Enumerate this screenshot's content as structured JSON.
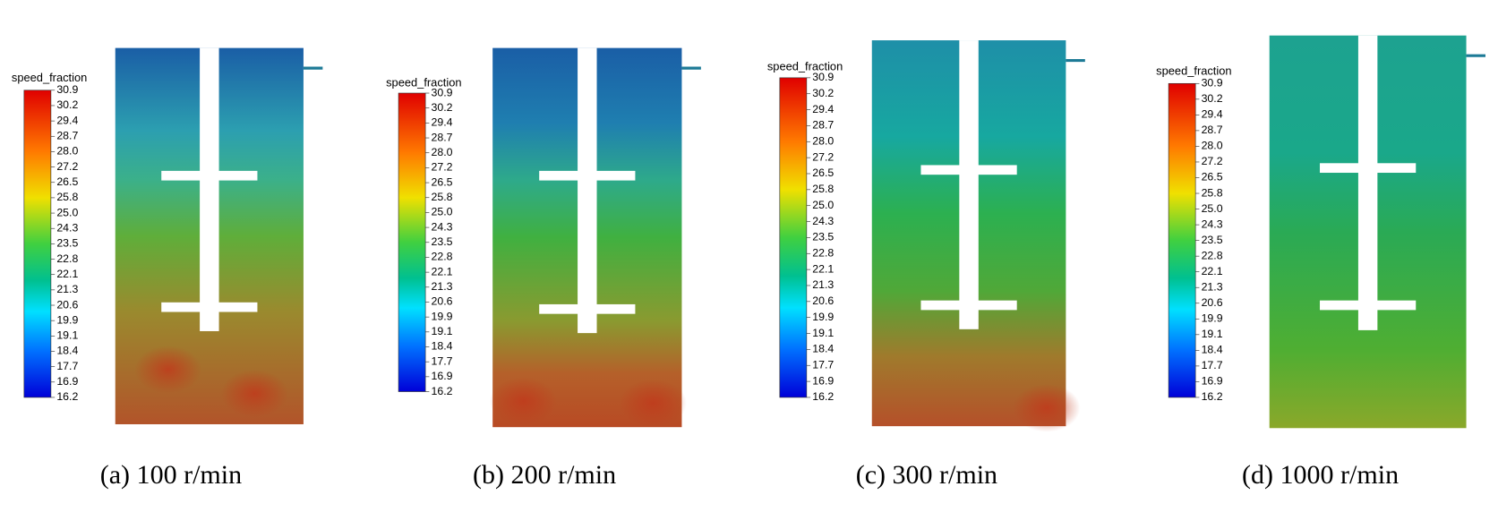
{
  "panels": [
    {
      "legend_title": "speed_fraction",
      "ticks": [
        "30.9",
        "30.2",
        "29.4",
        "28.7",
        "28.0",
        "27.2",
        "26.5",
        "25.8",
        "25.0",
        "24.3",
        "23.5",
        "22.8",
        "22.1",
        "21.3",
        "20.6",
        "19.9",
        "19.1",
        "18.4",
        "17.7",
        "16.9",
        "16.2"
      ],
      "caption": "(a) 100 r/min"
    },
    {
      "legend_title": "speed_fraction",
      "ticks": [
        "30.9",
        "30.2",
        "29.4",
        "28.7",
        "28.0",
        "27.2",
        "26.5",
        "25.8",
        "25.0",
        "24.3",
        "23.5",
        "22.8",
        "22.1",
        "21.3",
        "20.6",
        "19.9",
        "19.1",
        "18.4",
        "17.7",
        "16.9",
        "16.2"
      ],
      "caption": "(b) 200 r/min"
    },
    {
      "legend_title": "speed_fraction",
      "ticks": [
        "30.9",
        "30.2",
        "29.4",
        "28.7",
        "28.0",
        "27.2",
        "26.5",
        "25.8",
        "25.0",
        "24.3",
        "23.5",
        "22.8",
        "22.1",
        "21.3",
        "20.6",
        "19.9",
        "19.1",
        "18.4",
        "17.7",
        "16.9",
        "16.2"
      ],
      "caption": "(c) 300 r/min"
    },
    {
      "legend_title": "speed_fraction",
      "ticks": [
        "30.9",
        "30.2",
        "29.4",
        "28.7",
        "28.0",
        "27.2",
        "26.5",
        "25.8",
        "25.0",
        "24.3",
        "23.5",
        "22.8",
        "22.1",
        "21.3",
        "20.6",
        "19.9",
        "19.1",
        "18.4",
        "17.7",
        "16.9",
        "16.2"
      ],
      "caption": "(d) 1000 r/min"
    }
  ]
}
